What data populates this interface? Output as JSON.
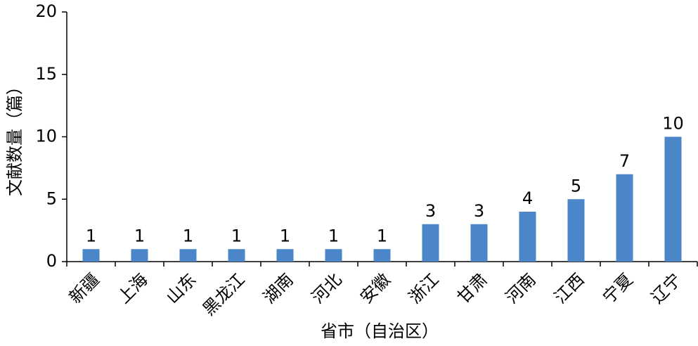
{
  "chart_data": {
    "type": "bar",
    "x_label": "省市（自治区）",
    "y_label": "文献数量（篇）",
    "categories": [
      "新疆",
      "上海",
      "山东",
      "黑龙江",
      "湖南",
      "河北",
      "安徽",
      "浙江",
      "甘肃",
      "河南",
      "江西",
      "宁夏",
      "辽宁"
    ],
    "values": [
      1,
      1,
      1,
      1,
      1,
      1,
      1,
      3,
      3,
      4,
      5,
      7,
      10
    ],
    "color": "#4a86c8",
    "ylim": [
      0,
      20
    ],
    "yticks": [
      0,
      5,
      10,
      15,
      20
    ],
    "grid": false
  }
}
